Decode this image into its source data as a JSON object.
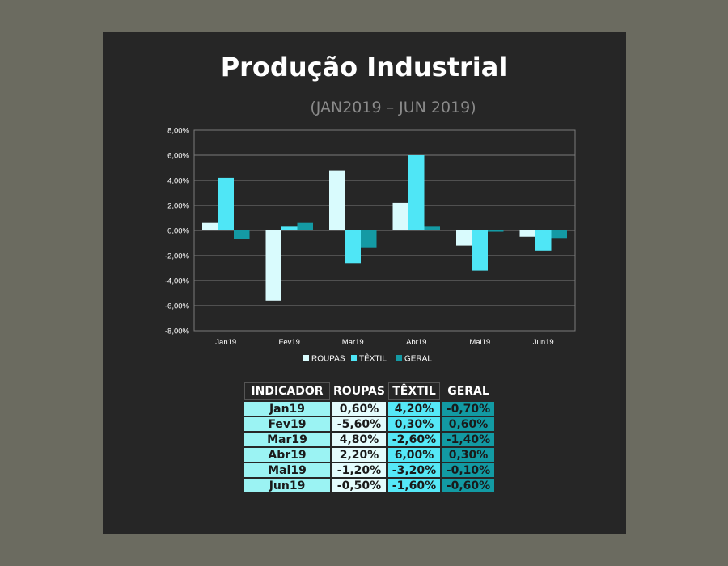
{
  "title": "Produção Industrial",
  "subtitle": "(JAN2019 – JUN 2019)",
  "colors": {
    "roupas": "#d9fbfd",
    "textil": "#4fe6f6",
    "geral": "#149aa4",
    "grid": "#7a7a7a",
    "text": "#ffffff"
  },
  "chart_data": {
    "type": "bar",
    "categories": [
      "Jan19",
      "Fev19",
      "Mar19",
      "Abr19",
      "Mai19",
      "Jun19"
    ],
    "series": [
      {
        "name": "ROUPAS",
        "values": [
          0.6,
          -5.6,
          4.8,
          2.2,
          -1.2,
          -0.5
        ]
      },
      {
        "name": "TÊXTIL",
        "values": [
          4.2,
          0.3,
          -2.6,
          6.0,
          -3.2,
          -1.6
        ]
      },
      {
        "name": "GERAL",
        "values": [
          -0.7,
          0.6,
          -1.4,
          0.3,
          -0.1,
          -0.6
        ]
      }
    ],
    "ylim": [
      -8,
      8
    ],
    "yticks": [
      "-8,00%",
      "-6,00%",
      "-4,00%",
      "-2,00%",
      "0,00%",
      "2,00%",
      "4,00%",
      "6,00%",
      "8,00%"
    ],
    "grid": true,
    "legend_position": "bottom"
  },
  "table": {
    "headers": [
      "INDICADOR",
      "ROUPAS",
      "TÊXTIL",
      "GERAL"
    ],
    "rows": [
      [
        "Jan19",
        "0,60%",
        "4,20%",
        "-0,70%"
      ],
      [
        "Fev19",
        "-5,60%",
        "0,30%",
        "0,60%"
      ],
      [
        "Mar19",
        "4,80%",
        "-2,60%",
        "-1,40%"
      ],
      [
        "Abr19",
        "2,20%",
        "6,00%",
        "0,30%"
      ],
      [
        "Mai19",
        "-1,20%",
        "-3,20%",
        "-0,10%"
      ],
      [
        "Jun19",
        "-0,50%",
        "-1,60%",
        "-0,60%"
      ]
    ]
  }
}
